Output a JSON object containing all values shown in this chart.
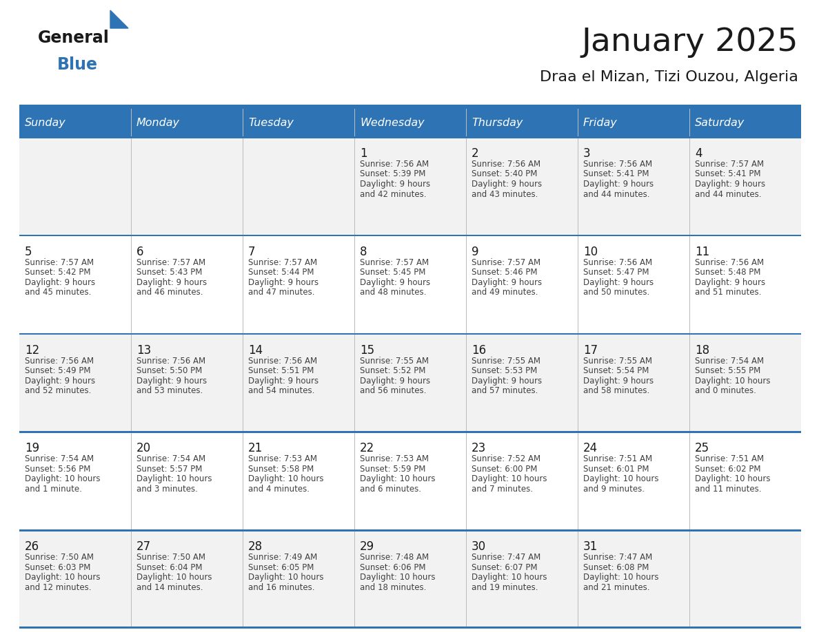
{
  "title": "January 2025",
  "subtitle": "Draa el Mizan, Tizi Ouzou, Algeria",
  "header_bg": "#2E74B5",
  "header_text": "#FFFFFF",
  "row_bg_odd": "#F2F2F2",
  "row_bg_even": "#FFFFFF",
  "grid_line_color": "#2E74B5",
  "day_headers": [
    "Sunday",
    "Monday",
    "Tuesday",
    "Wednesday",
    "Thursday",
    "Friday",
    "Saturday"
  ],
  "title_color": "#1a1a1a",
  "subtitle_color": "#1a1a1a",
  "cell_text_color": "#404040",
  "day_num_color": "#1a1a1a",
  "logo_general_color": "#1a1a1a",
  "logo_blue_color": "#2E74B5",
  "calendar_data": [
    [
      null,
      null,
      null,
      {
        "day": 1,
        "sunrise": "7:56 AM",
        "sunset": "5:39 PM",
        "daylight": "9 hours",
        "daylight2": "and 42 minutes."
      },
      {
        "day": 2,
        "sunrise": "7:56 AM",
        "sunset": "5:40 PM",
        "daylight": "9 hours",
        "daylight2": "and 43 minutes."
      },
      {
        "day": 3,
        "sunrise": "7:56 AM",
        "sunset": "5:41 PM",
        "daylight": "9 hours",
        "daylight2": "and 44 minutes."
      },
      {
        "day": 4,
        "sunrise": "7:57 AM",
        "sunset": "5:41 PM",
        "daylight": "9 hours",
        "daylight2": "and 44 minutes."
      }
    ],
    [
      {
        "day": 5,
        "sunrise": "7:57 AM",
        "sunset": "5:42 PM",
        "daylight": "9 hours",
        "daylight2": "and 45 minutes."
      },
      {
        "day": 6,
        "sunrise": "7:57 AM",
        "sunset": "5:43 PM",
        "daylight": "9 hours",
        "daylight2": "and 46 minutes."
      },
      {
        "day": 7,
        "sunrise": "7:57 AM",
        "sunset": "5:44 PM",
        "daylight": "9 hours",
        "daylight2": "and 47 minutes."
      },
      {
        "day": 8,
        "sunrise": "7:57 AM",
        "sunset": "5:45 PM",
        "daylight": "9 hours",
        "daylight2": "and 48 minutes."
      },
      {
        "day": 9,
        "sunrise": "7:57 AM",
        "sunset": "5:46 PM",
        "daylight": "9 hours",
        "daylight2": "and 49 minutes."
      },
      {
        "day": 10,
        "sunrise": "7:56 AM",
        "sunset": "5:47 PM",
        "daylight": "9 hours",
        "daylight2": "and 50 minutes."
      },
      {
        "day": 11,
        "sunrise": "7:56 AM",
        "sunset": "5:48 PM",
        "daylight": "9 hours",
        "daylight2": "and 51 minutes."
      }
    ],
    [
      {
        "day": 12,
        "sunrise": "7:56 AM",
        "sunset": "5:49 PM",
        "daylight": "9 hours",
        "daylight2": "and 52 minutes."
      },
      {
        "day": 13,
        "sunrise": "7:56 AM",
        "sunset": "5:50 PM",
        "daylight": "9 hours",
        "daylight2": "and 53 minutes."
      },
      {
        "day": 14,
        "sunrise": "7:56 AM",
        "sunset": "5:51 PM",
        "daylight": "9 hours",
        "daylight2": "and 54 minutes."
      },
      {
        "day": 15,
        "sunrise": "7:55 AM",
        "sunset": "5:52 PM",
        "daylight": "9 hours",
        "daylight2": "and 56 minutes."
      },
      {
        "day": 16,
        "sunrise": "7:55 AM",
        "sunset": "5:53 PM",
        "daylight": "9 hours",
        "daylight2": "and 57 minutes."
      },
      {
        "day": 17,
        "sunrise": "7:55 AM",
        "sunset": "5:54 PM",
        "daylight": "9 hours",
        "daylight2": "and 58 minutes."
      },
      {
        "day": 18,
        "sunrise": "7:54 AM",
        "sunset": "5:55 PM",
        "daylight": "10 hours",
        "daylight2": "and 0 minutes."
      }
    ],
    [
      {
        "day": 19,
        "sunrise": "7:54 AM",
        "sunset": "5:56 PM",
        "daylight": "10 hours",
        "daylight2": "and 1 minute."
      },
      {
        "day": 20,
        "sunrise": "7:54 AM",
        "sunset": "5:57 PM",
        "daylight": "10 hours",
        "daylight2": "and 3 minutes."
      },
      {
        "day": 21,
        "sunrise": "7:53 AM",
        "sunset": "5:58 PM",
        "daylight": "10 hours",
        "daylight2": "and 4 minutes."
      },
      {
        "day": 22,
        "sunrise": "7:53 AM",
        "sunset": "5:59 PM",
        "daylight": "10 hours",
        "daylight2": "and 6 minutes."
      },
      {
        "day": 23,
        "sunrise": "7:52 AM",
        "sunset": "6:00 PM",
        "daylight": "10 hours",
        "daylight2": "and 7 minutes."
      },
      {
        "day": 24,
        "sunrise": "7:51 AM",
        "sunset": "6:01 PM",
        "daylight": "10 hours",
        "daylight2": "and 9 minutes."
      },
      {
        "day": 25,
        "sunrise": "7:51 AM",
        "sunset": "6:02 PM",
        "daylight": "10 hours",
        "daylight2": "and 11 minutes."
      }
    ],
    [
      {
        "day": 26,
        "sunrise": "7:50 AM",
        "sunset": "6:03 PM",
        "daylight": "10 hours",
        "daylight2": "and 12 minutes."
      },
      {
        "day": 27,
        "sunrise": "7:50 AM",
        "sunset": "6:04 PM",
        "daylight": "10 hours",
        "daylight2": "and 14 minutes."
      },
      {
        "day": 28,
        "sunrise": "7:49 AM",
        "sunset": "6:05 PM",
        "daylight": "10 hours",
        "daylight2": "and 16 minutes."
      },
      {
        "day": 29,
        "sunrise": "7:48 AM",
        "sunset": "6:06 PM",
        "daylight": "10 hours",
        "daylight2": "and 18 minutes."
      },
      {
        "day": 30,
        "sunrise": "7:47 AM",
        "sunset": "6:07 PM",
        "daylight": "10 hours",
        "daylight2": "and 19 minutes."
      },
      {
        "day": 31,
        "sunrise": "7:47 AM",
        "sunset": "6:08 PM",
        "daylight": "10 hours",
        "daylight2": "and 21 minutes."
      },
      null
    ]
  ]
}
